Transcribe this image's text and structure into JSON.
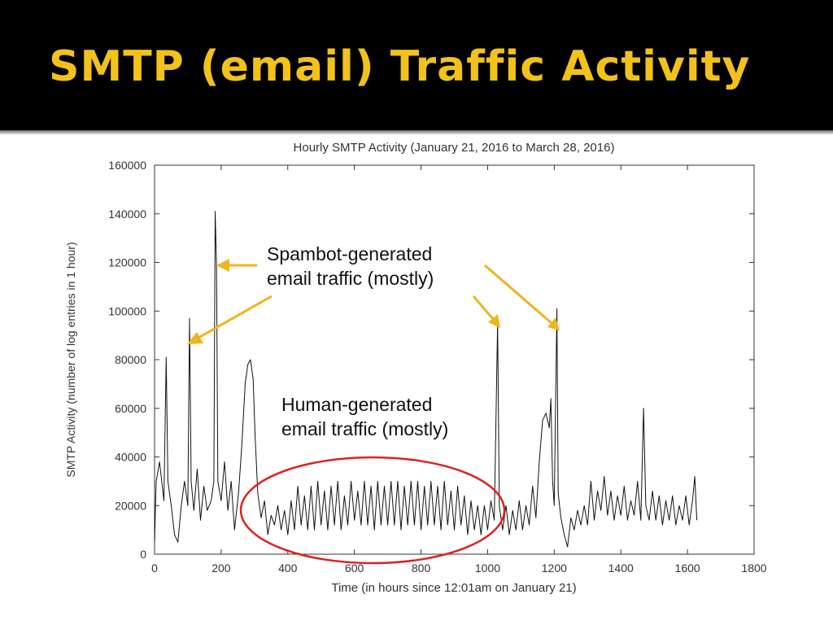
{
  "slide": {
    "title": "SMTP (email) Traffic Activity"
  },
  "colors": {
    "title": "#f2c21a",
    "band": "#000000",
    "arrow": "#f0b41e",
    "ellipse": "#e02020",
    "series": "#111111"
  },
  "annotations": {
    "spambot_line1": "Spambot-generated",
    "spambot_line2": "email traffic (mostly)",
    "human_line1": "Human-generated",
    "human_line2": "email traffic (mostly)"
  },
  "chart_data": {
    "type": "line",
    "title": "Hourly SMTP Activity (January 21, 2016 to March 28, 2016)",
    "xlabel": "Time (in hours since 12:01am on January 21)",
    "ylabel": "SMTP Activity (number of log entries in 1 hour)",
    "xlim": [
      0,
      1800
    ],
    "ylim": [
      0,
      160000
    ],
    "xticks": [
      0,
      200,
      400,
      600,
      800,
      1000,
      1200,
      1400,
      1600,
      1800
    ],
    "yticks": [
      0,
      20000,
      40000,
      60000,
      80000,
      100000,
      120000,
      140000,
      160000
    ],
    "grid": false,
    "series": [
      {
        "points": [
          [
            0,
            5000
          ],
          [
            5,
            30000
          ],
          [
            15,
            38000
          ],
          [
            28,
            22000
          ],
          [
            35,
            81000
          ],
          [
            40,
            30000
          ],
          [
            50,
            20000
          ],
          [
            60,
            8000
          ],
          [
            70,
            5000
          ],
          [
            80,
            20000
          ],
          [
            90,
            30000
          ],
          [
            100,
            20000
          ],
          [
            105,
            97000
          ],
          [
            110,
            30000
          ],
          [
            118,
            18000
          ],
          [
            128,
            35000
          ],
          [
            138,
            14000
          ],
          [
            148,
            28000
          ],
          [
            158,
            18000
          ],
          [
            170,
            22000
          ],
          [
            178,
            30000
          ],
          [
            182,
            141000
          ],
          [
            186,
            118000
          ],
          [
            190,
            30000
          ],
          [
            200,
            22000
          ],
          [
            210,
            38000
          ],
          [
            220,
            18000
          ],
          [
            230,
            30000
          ],
          [
            240,
            10000
          ],
          [
            252,
            25000
          ],
          [
            262,
            45000
          ],
          [
            272,
            70000
          ],
          [
            280,
            78000
          ],
          [
            288,
            80000
          ],
          [
            296,
            72000
          ],
          [
            302,
            48000
          ],
          [
            310,
            25000
          ],
          [
            320,
            15000
          ],
          [
            330,
            22000
          ],
          [
            340,
            8000
          ],
          [
            350,
            16000
          ],
          [
            360,
            12000
          ],
          [
            370,
            20000
          ],
          [
            380,
            10000
          ],
          [
            390,
            18000
          ],
          [
            400,
            8000
          ],
          [
            410,
            22000
          ],
          [
            420,
            10000
          ],
          [
            430,
            28000
          ],
          [
            440,
            12000
          ],
          [
            450,
            24000
          ],
          [
            460,
            10000
          ],
          [
            470,
            28000
          ],
          [
            480,
            10000
          ],
          [
            490,
            30000
          ],
          [
            500,
            12000
          ],
          [
            510,
            26000
          ],
          [
            520,
            10000
          ],
          [
            530,
            28000
          ],
          [
            540,
            12000
          ],
          [
            550,
            30000
          ],
          [
            560,
            10000
          ],
          [
            570,
            24000
          ],
          [
            580,
            12000
          ],
          [
            590,
            30000
          ],
          [
            600,
            14000
          ],
          [
            610,
            26000
          ],
          [
            620,
            12000
          ],
          [
            630,
            30000
          ],
          [
            640,
            12000
          ],
          [
            650,
            28000
          ],
          [
            660,
            10000
          ],
          [
            670,
            30000
          ],
          [
            680,
            12000
          ],
          [
            690,
            28000
          ],
          [
            700,
            12000
          ],
          [
            710,
            30000
          ],
          [
            720,
            12000
          ],
          [
            730,
            30000
          ],
          [
            740,
            10000
          ],
          [
            750,
            28000
          ],
          [
            760,
            12000
          ],
          [
            770,
            30000
          ],
          [
            780,
            12000
          ],
          [
            790,
            30000
          ],
          [
            800,
            10000
          ],
          [
            810,
            28000
          ],
          [
            820,
            12000
          ],
          [
            830,
            30000
          ],
          [
            840,
            12000
          ],
          [
            850,
            28000
          ],
          [
            860,
            10000
          ],
          [
            870,
            30000
          ],
          [
            880,
            12000
          ],
          [
            890,
            26000
          ],
          [
            900,
            10000
          ],
          [
            910,
            28000
          ],
          [
            920,
            12000
          ],
          [
            930,
            24000
          ],
          [
            940,
            8000
          ],
          [
            950,
            22000
          ],
          [
            960,
            10000
          ],
          [
            970,
            20000
          ],
          [
            980,
            8000
          ],
          [
            990,
            20000
          ],
          [
            1000,
            10000
          ],
          [
            1010,
            22000
          ],
          [
            1020,
            14000
          ],
          [
            1030,
            95000
          ],
          [
            1035,
            20000
          ],
          [
            1045,
            10000
          ],
          [
            1055,
            20000
          ],
          [
            1065,
            8000
          ],
          [
            1075,
            18000
          ],
          [
            1085,
            10000
          ],
          [
            1095,
            22000
          ],
          [
            1105,
            10000
          ],
          [
            1115,
            20000
          ],
          [
            1125,
            12000
          ],
          [
            1135,
            28000
          ],
          [
            1145,
            15000
          ],
          [
            1155,
            38000
          ],
          [
            1165,
            55000
          ],
          [
            1175,
            58000
          ],
          [
            1185,
            52000
          ],
          [
            1190,
            64000
          ],
          [
            1195,
            30000
          ],
          [
            1200,
            20000
          ],
          [
            1208,
            101000
          ],
          [
            1212,
            25000
          ],
          [
            1220,
            15000
          ],
          [
            1230,
            8000
          ],
          [
            1240,
            3000
          ],
          [
            1250,
            15000
          ],
          [
            1260,
            10000
          ],
          [
            1270,
            18000
          ],
          [
            1280,
            12000
          ],
          [
            1290,
            20000
          ],
          [
            1300,
            12000
          ],
          [
            1310,
            30000
          ],
          [
            1320,
            14000
          ],
          [
            1330,
            26000
          ],
          [
            1340,
            18000
          ],
          [
            1350,
            32000
          ],
          [
            1360,
            16000
          ],
          [
            1370,
            26000
          ],
          [
            1380,
            14000
          ],
          [
            1390,
            24000
          ],
          [
            1400,
            16000
          ],
          [
            1410,
            28000
          ],
          [
            1420,
            14000
          ],
          [
            1430,
            22000
          ],
          [
            1440,
            16000
          ],
          [
            1450,
            30000
          ],
          [
            1460,
            14000
          ],
          [
            1468,
            60000
          ],
          [
            1475,
            20000
          ],
          [
            1485,
            14000
          ],
          [
            1495,
            26000
          ],
          [
            1505,
            14000
          ],
          [
            1515,
            24000
          ],
          [
            1525,
            12000
          ],
          [
            1535,
            22000
          ],
          [
            1545,
            14000
          ],
          [
            1555,
            24000
          ],
          [
            1565,
            12000
          ],
          [
            1575,
            20000
          ],
          [
            1585,
            14000
          ],
          [
            1595,
            24000
          ],
          [
            1605,
            12000
          ],
          [
            1615,
            22000
          ],
          [
            1622,
            32000
          ],
          [
            1628,
            14000
          ]
        ]
      }
    ]
  }
}
